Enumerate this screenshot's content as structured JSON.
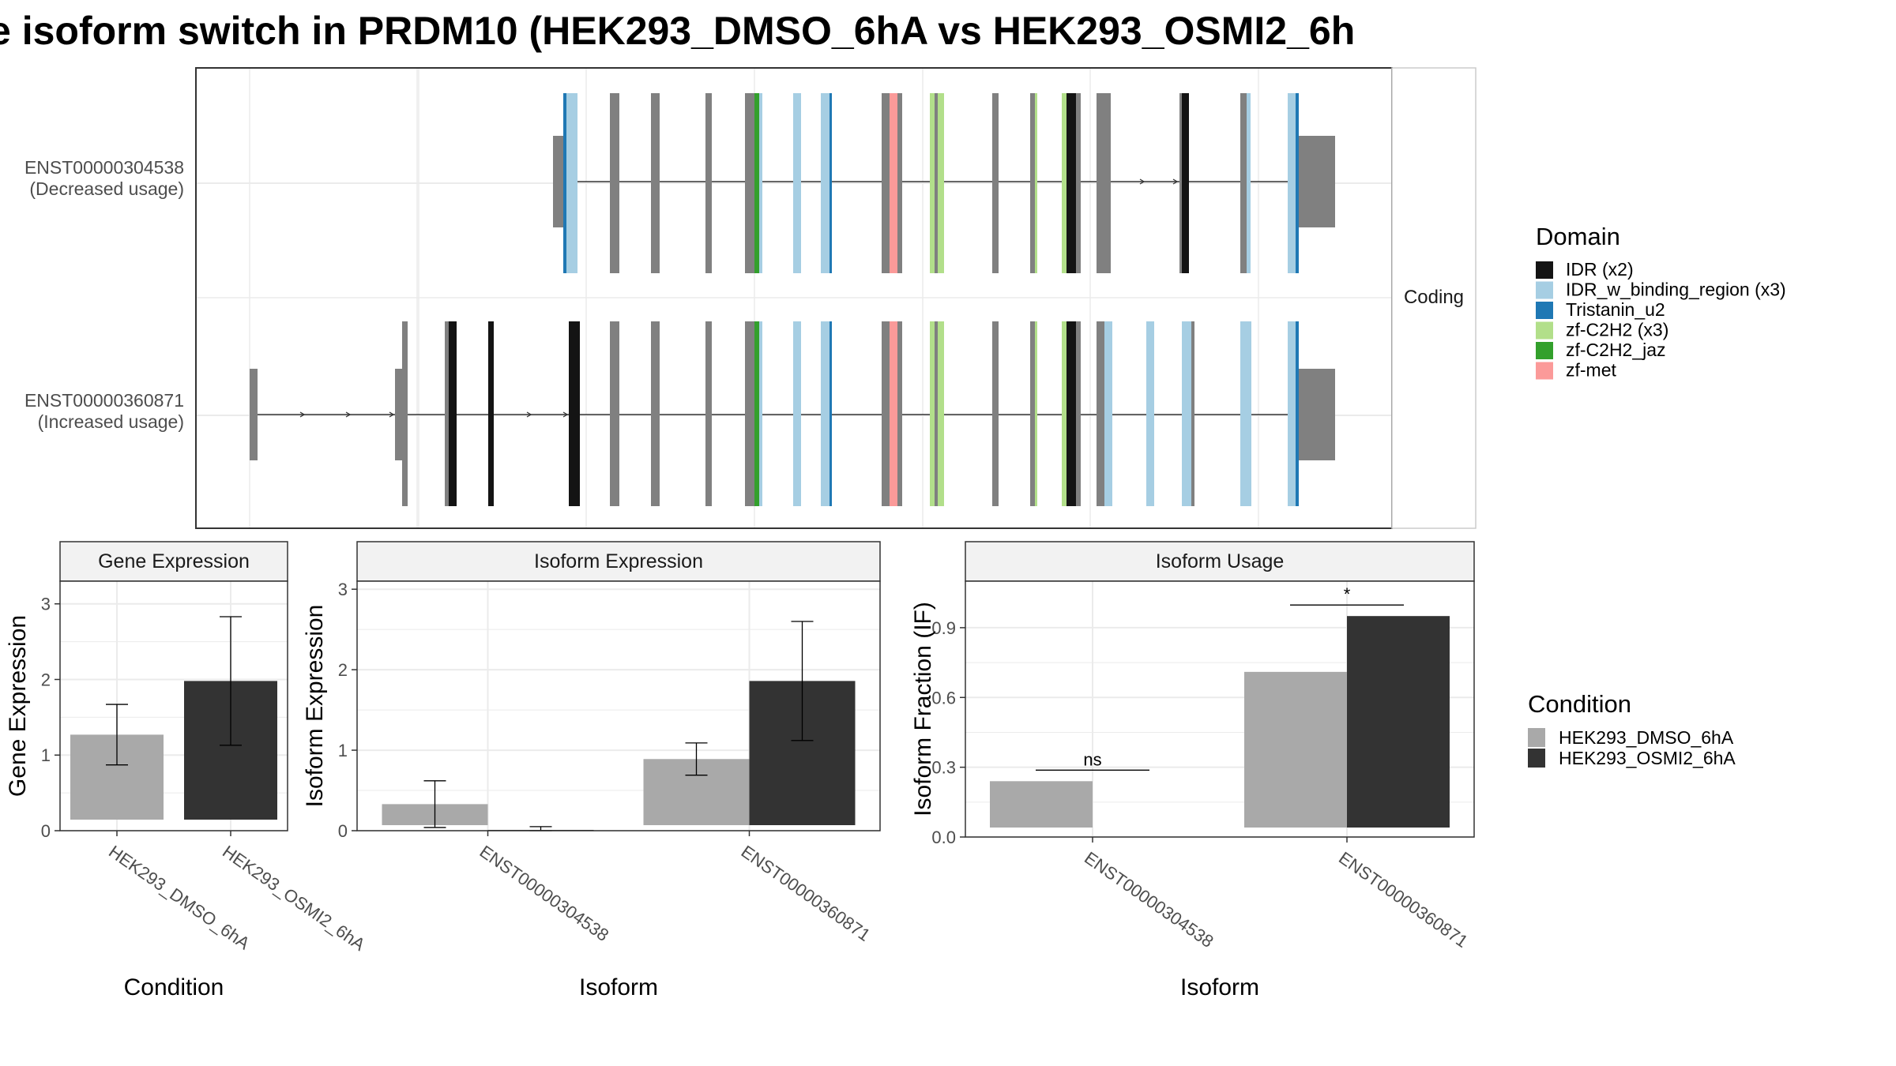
{
  "figure": {
    "title": "e isoform switch in PRDM10 (HEK293_DMSO_6hA vs HEK293_OSMI2_6h"
  },
  "colors": {
    "dmso": "#a9a9a9",
    "osmi2": "#333333",
    "utr": "#808080",
    "intron_line": "#333333",
    "grid": "#ebebeb",
    "panel_border": "#333333",
    "strip_fill": "#f2f2f2",
    "IDR": "#141414",
    "IDR_w_binding_region": "#a6cee3",
    "Tristanin_u2": "#1f78b4",
    "zf-C2H2": "#b2df8a",
    "zf-C2H2_jaz": "#33a02c",
    "zf-met": "#fb9a99"
  },
  "chart_data": [
    {
      "type": "transcript-structure",
      "panel_strip": "Coding",
      "isoforms": [
        {
          "id": "ENST00000304538",
          "label_line1": "ENST00000304538",
          "label_line2": "(Decreased usage)"
        },
        {
          "id": "ENST00000360871",
          "label_line1": "ENST00000360871",
          "label_line2": "(Increased usage)"
        }
      ],
      "legend": {
        "title": "Domain",
        "items": [
          {
            "label": "IDR (x2)",
            "color_key": "IDR"
          },
          {
            "label": "IDR_w_binding_region (x3)",
            "color_key": "IDR_w_binding_region"
          },
          {
            "label": "Tristanin_u2",
            "color_key": "Tristanin_u2"
          },
          {
            "label": "zf-C2H2 (x3)",
            "color_key": "zf-C2H2"
          },
          {
            "label": "zf-C2H2_jaz",
            "color_key": "zf-C2H2_jaz"
          },
          {
            "label": "zf-met",
            "color_key": "zf-met"
          }
        ]
      }
    },
    {
      "type": "bar",
      "strip": "Gene Expression",
      "xlabel": "Condition",
      "ylabel": "Gene Expression",
      "ylim": [
        0,
        3.3
      ],
      "yticks": [
        0,
        1,
        2,
        3
      ],
      "categories": [
        "HEK293_DMSO_6hA",
        "HEK293_OSMI2_6hA"
      ],
      "values": [
        1.27,
        1.98
      ],
      "errors": [
        [
          0.87,
          1.67
        ],
        [
          1.13,
          2.83
        ]
      ]
    },
    {
      "type": "bar",
      "strip": "Isoform Expression",
      "xlabel": "Isoform",
      "ylabel": "Isoform Expression",
      "ylim": [
        0,
        3.1
      ],
      "yticks": [
        0,
        1,
        2,
        3
      ],
      "categories": [
        "ENST00000304538",
        "ENST00000360871"
      ],
      "series": [
        {
          "name": "HEK293_DMSO_6hA",
          "values": [
            0.33,
            0.89
          ],
          "errors": [
            [
              0.04,
              0.62
            ],
            [
              0.69,
              1.09
            ]
          ]
        },
        {
          "name": "HEK293_OSMI2_6hA",
          "values": [
            0.01,
            1.86
          ],
          "errors": [
            [
              0.0,
              0.05
            ],
            [
              1.12,
              2.6
            ]
          ]
        }
      ]
    },
    {
      "type": "bar",
      "strip": "Isoform Usage",
      "xlabel": "Isoform",
      "ylabel": "Isoform Fraction (IF)",
      "ylim": [
        0,
        1.1
      ],
      "yticks": [
        "0.0",
        "0.3",
        "0.6",
        "0.9"
      ],
      "categories": [
        "ENST00000304538",
        "ENST00000360871"
      ],
      "series": [
        {
          "name": "HEK293_DMSO_6hA",
          "values": [
            0.24,
            0.71
          ]
        },
        {
          "name": "HEK293_OSMI2_6hA",
          "values": [
            0.0,
            0.95
          ]
        }
      ],
      "significance": [
        "ns",
        "*"
      ]
    }
  ],
  "condition_legend": {
    "title": "Condition",
    "items": [
      {
        "label": "HEK293_DMSO_6hA",
        "color_key": "dmso"
      },
      {
        "label": "HEK293_OSMI2_6hA",
        "color_key": "osmi2"
      }
    ]
  }
}
